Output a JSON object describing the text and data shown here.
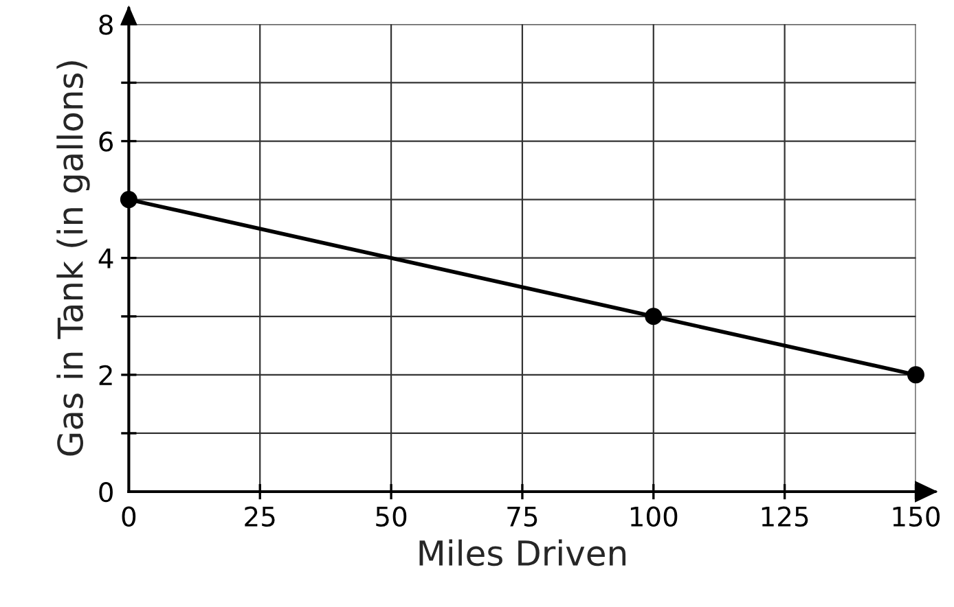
{
  "chart_data": {
    "type": "line",
    "xlabel": "Miles Driven",
    "ylabel": "Gas in Tank (in gallons)",
    "x": [
      0,
      100,
      150
    ],
    "series": [
      {
        "color": "#000000",
        "values": [
          5,
          3,
          2
        ]
      }
    ],
    "xlim": [
      0,
      150
    ],
    "ylim": [
      0,
      8
    ],
    "xticks": [
      0,
      25,
      50,
      75,
      100,
      125,
      150
    ],
    "yticks": [
      0,
      {
        "value": 1,
        "label": null
      },
      2,
      {
        "value": 3,
        "label": null
      },
      4,
      {
        "value": 5,
        "label": null
      },
      6,
      {
        "value": 7,
        "label": null
      },
      8
    ],
    "grid": true,
    "marker": "circle",
    "line_style": "solid"
  }
}
